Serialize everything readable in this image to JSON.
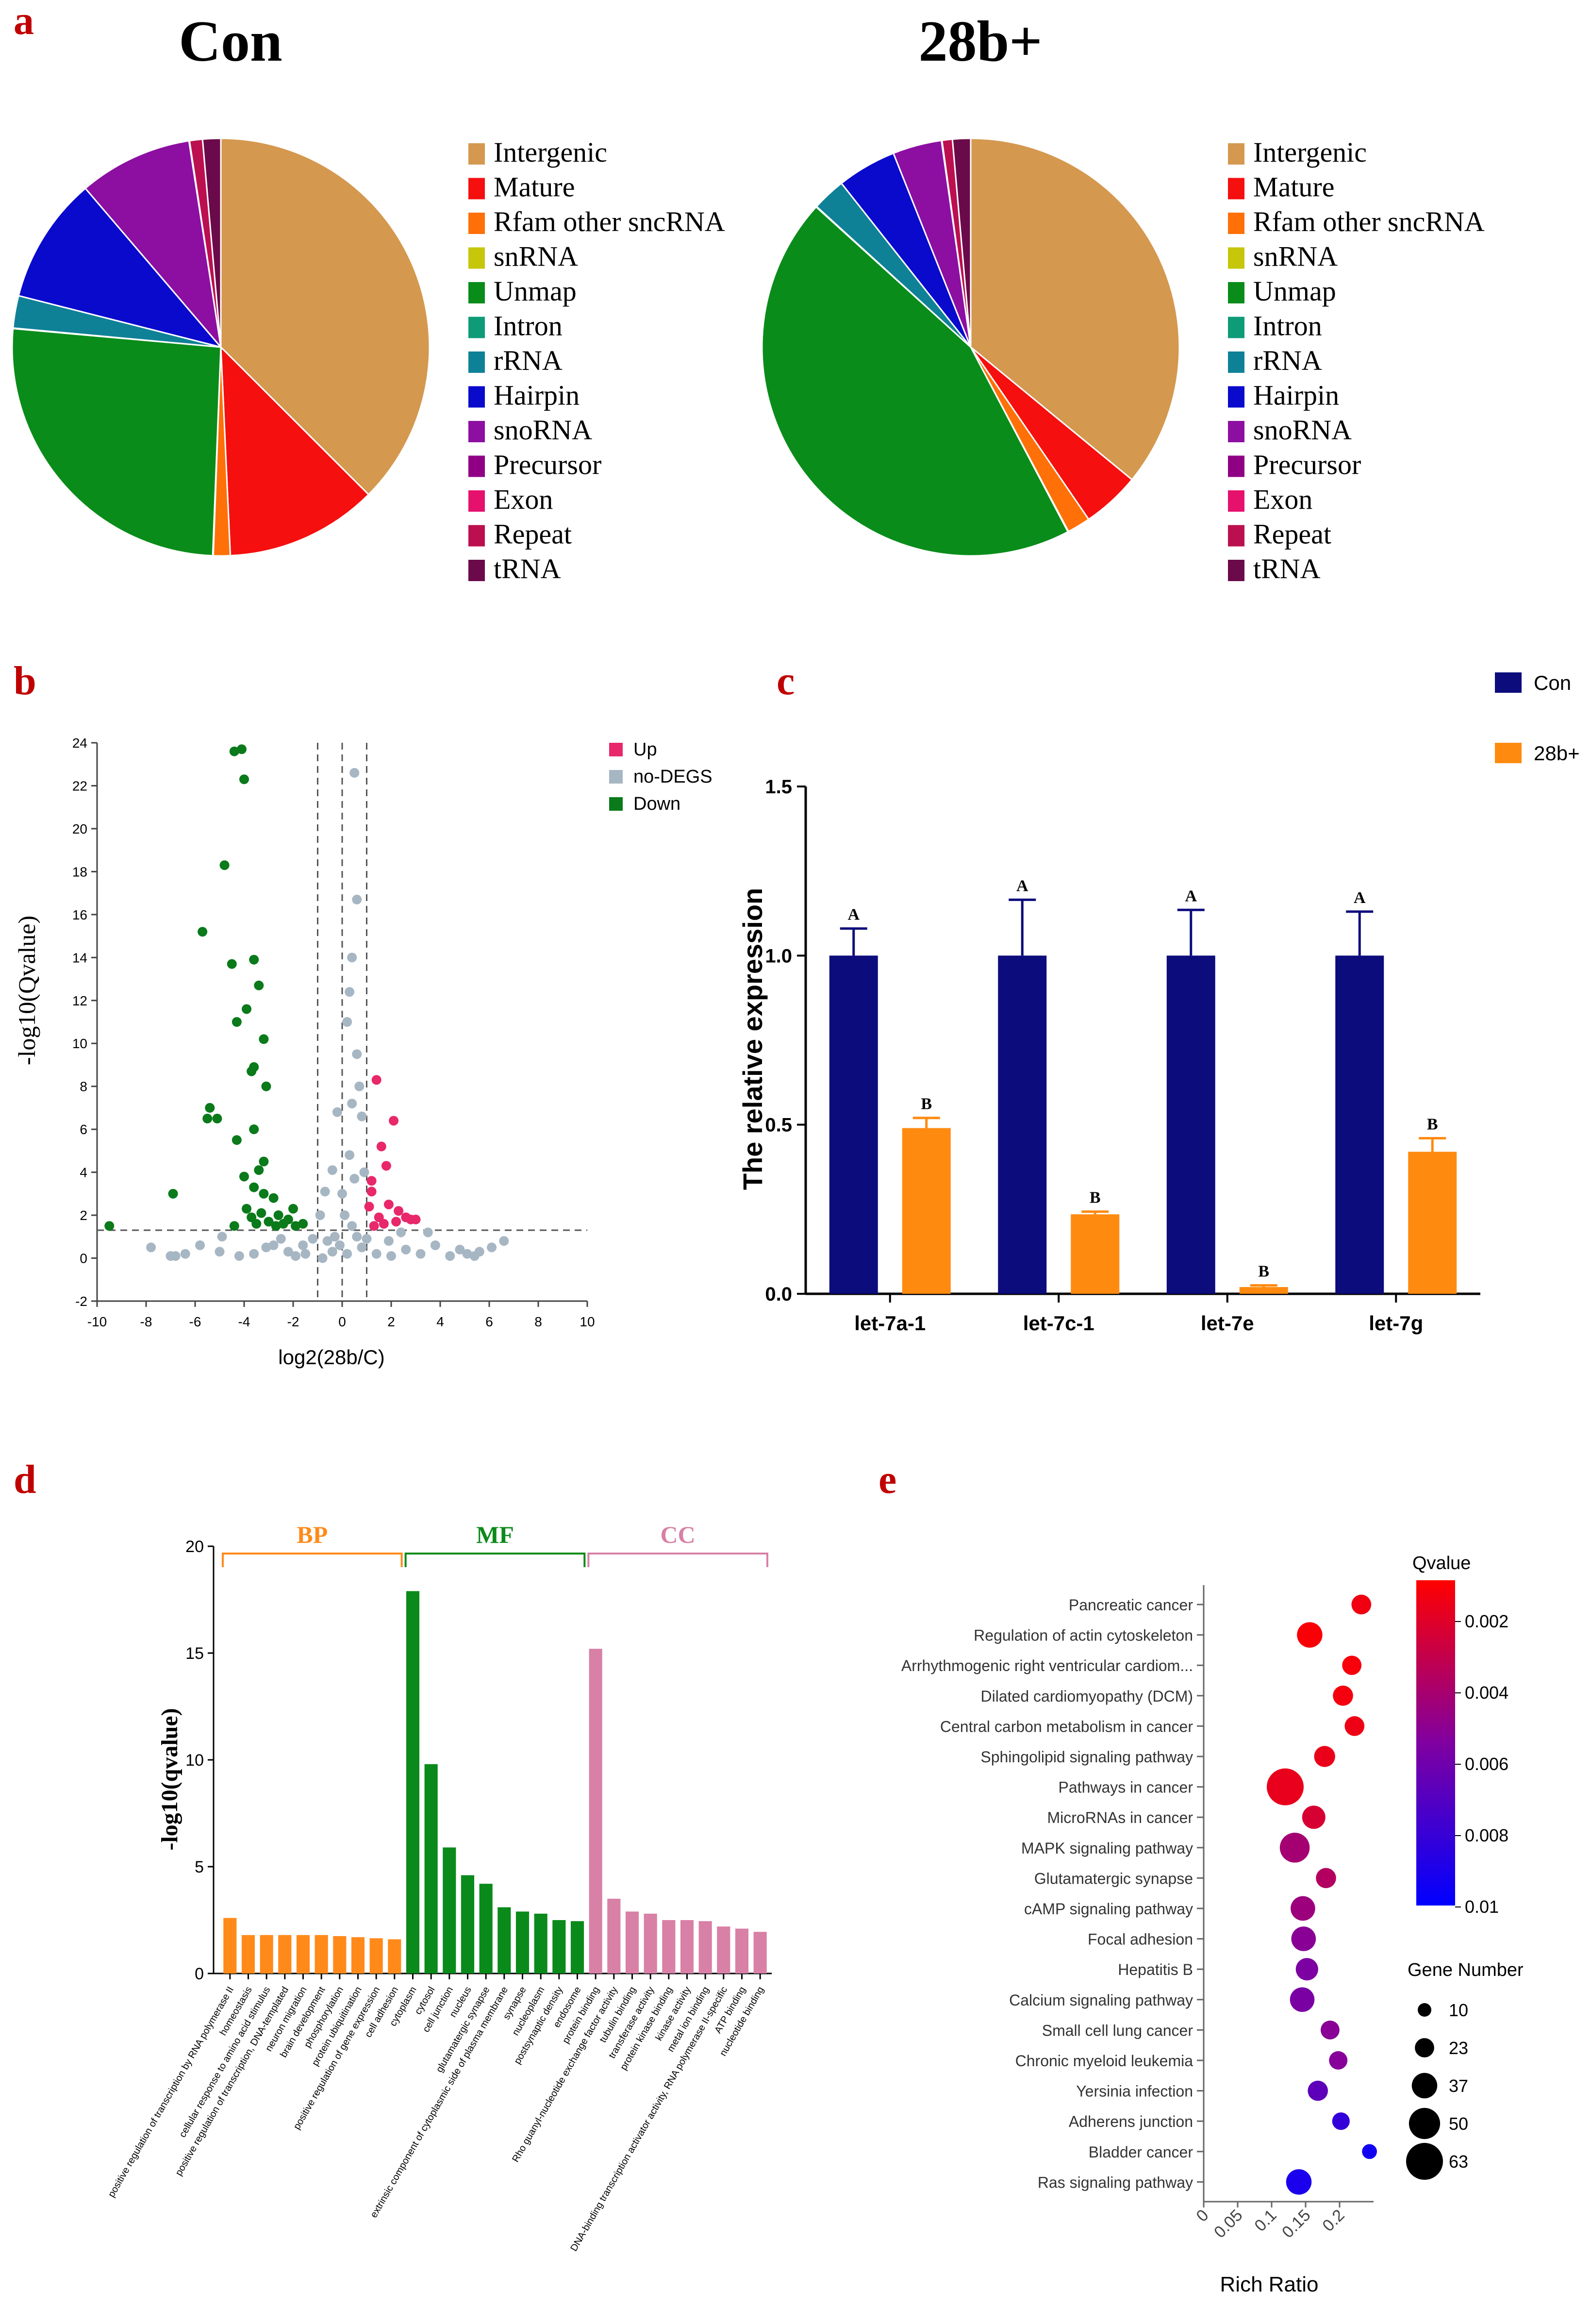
{
  "panels": {
    "a": {
      "letter": "a"
    },
    "b": {
      "letter": "b"
    },
    "c": {
      "letter": "c"
    },
    "d": {
      "letter": "d"
    },
    "e": {
      "letter": "e"
    }
  },
  "colors": {
    "intergenic": "#D4984F",
    "mature": "#F50F0F",
    "rfam": "#FF7008",
    "snrna": "#C6C60A",
    "unmap": "#0A8C1A",
    "intron": "#0E9B78",
    "rrna": "#0F8197",
    "hairpin": "#0A0ACD",
    "snorna": "#8C0FA2",
    "precursor": "#8F0085",
    "exon": "#E6116C",
    "repeat": "#BC0F50",
    "trna": "#6B0A4A",
    "up": "#E8286B",
    "nodegs": "#A7B6C3",
    "down": "#0A7A1A",
    "con_bar": "#0C0C7C",
    "b28_bar": "#FF8A10",
    "bp": "#FF8A1A",
    "mf": "#0A8A1A",
    "cc": "#D880A6"
  },
  "chart_data": [
    {
      "type": "pie",
      "id": "pie_con",
      "title": "Con",
      "labels": [
        "Intergenic",
        "Mature",
        "Rfam other sncRNA",
        "snRNA",
        "Unmap",
        "Intron",
        "rRNA",
        "Hairpin",
        "snoRNA",
        "Precursor",
        "Exon",
        "Repeat",
        "tRNA"
      ],
      "values": [
        37.5,
        11.8,
        1.3,
        0.05,
        25.8,
        0.05,
        2.5,
        9.8,
        8.8,
        0.0,
        0.05,
        1.0,
        1.4
      ],
      "legend_position": "right"
    },
    {
      "type": "pie",
      "id": "pie_28b",
      "title": "28b+",
      "labels": [
        "Intergenic",
        "Mature",
        "Rfam other sncRNA",
        "snRNA",
        "Unmap",
        "Intron",
        "rRNA",
        "Hairpin",
        "snoRNA",
        "Precursor",
        "Exon",
        "Repeat",
        "tRNA"
      ],
      "values": [
        36.0,
        4.5,
        1.8,
        0.05,
        44.5,
        0.05,
        2.6,
        4.6,
        3.8,
        0.0,
        0.05,
        0.8,
        1.4
      ],
      "legend_position": "right"
    },
    {
      "type": "scatter",
      "id": "volcano",
      "xlabel": "log2(28b/C)",
      "ylabel": "-log10(Qvalue)",
      "xlim": [
        -10,
        10
      ],
      "ylim": [
        -2,
        24
      ],
      "xticks": [
        "-10",
        "-8",
        "-6",
        "-4",
        "-2",
        "0",
        "2",
        "4",
        "6",
        "8",
        "10"
      ],
      "yticks": [
        "-2",
        "0",
        "2",
        "4",
        "6",
        "8",
        "10",
        "12",
        "14",
        "16",
        "18",
        "20",
        "22",
        "24"
      ],
      "thresholds": {
        "x": [
          -1,
          0,
          1
        ],
        "y": 1.3
      },
      "legend": [
        "Up",
        "no-DEGS",
        "Down"
      ],
      "series": [
        {
          "name": "Up",
          "points": [
            [
              1.4,
              8.3
            ],
            [
              2.1,
              6.4
            ],
            [
              1.6,
              5.2
            ],
            [
              1.8,
              4.3
            ],
            [
              1.2,
              3.1
            ],
            [
              1.9,
              2.5
            ],
            [
              2.3,
              2.2
            ],
            [
              2.6,
              1.9
            ],
            [
              3.0,
              1.8
            ],
            [
              1.5,
              1.9
            ],
            [
              1.3,
              1.5
            ],
            [
              1.7,
              1.6
            ],
            [
              2.2,
              1.7
            ],
            [
              2.8,
              1.8
            ],
            [
              1.1,
              2.4
            ],
            [
              1.2,
              3.6
            ]
          ]
        },
        {
          "name": "no-DEGS",
          "points": [
            [
              0.5,
              22.6
            ],
            [
              0.6,
              16.7
            ],
            [
              0.4,
              14.0
            ],
            [
              0.3,
              12.4
            ],
            [
              0.2,
              11.0
            ],
            [
              0.6,
              9.5
            ],
            [
              0.7,
              8.0
            ],
            [
              0.4,
              7.2
            ],
            [
              0.8,
              6.6
            ],
            [
              -0.2,
              6.8
            ],
            [
              -0.4,
              4.1
            ],
            [
              0.3,
              4.8
            ],
            [
              0.5,
              3.7
            ],
            [
              0.9,
              4.0
            ],
            [
              0.0,
              3.0
            ],
            [
              -0.7,
              3.1
            ],
            [
              -0.9,
              2.0
            ],
            [
              0.1,
              2.0
            ],
            [
              0.4,
              1.5
            ],
            [
              -0.3,
              1.0
            ],
            [
              -0.6,
              0.8
            ],
            [
              -1.5,
              0.2
            ],
            [
              -2.2,
              0.3
            ],
            [
              -3.1,
              0.5
            ],
            [
              -4.2,
              0.1
            ],
            [
              -5.0,
              0.3
            ],
            [
              -5.8,
              0.6
            ],
            [
              -6.4,
              0.2
            ],
            [
              -7.0,
              0.1
            ],
            [
              -7.8,
              0.5
            ],
            [
              -2.8,
              0.6
            ],
            [
              -1.9,
              0.1
            ],
            [
              -0.8,
              0.0
            ],
            [
              -0.4,
              0.3
            ],
            [
              0.2,
              0.2
            ],
            [
              0.8,
              0.5
            ],
            [
              1.4,
              0.2
            ],
            [
              1.9,
              0.8
            ],
            [
              2.6,
              0.4
            ],
            [
              3.2,
              0.2
            ],
            [
              3.8,
              0.6
            ],
            [
              4.4,
              0.1
            ],
            [
              5.1,
              0.2
            ],
            [
              5.6,
              0.3
            ],
            [
              6.1,
              0.5
            ],
            [
              6.6,
              0.8
            ],
            [
              3.5,
              1.2
            ],
            [
              2.4,
              1.2
            ],
            [
              -1.2,
              0.9
            ],
            [
              -0.1,
              0.6
            ],
            [
              0.6,
              1.0
            ],
            [
              -1.6,
              0.6
            ],
            [
              1.0,
              0.9
            ],
            [
              -2.5,
              0.9
            ],
            [
              4.8,
              0.4
            ],
            [
              5.4,
              0.1
            ],
            [
              -4.9,
              1.0
            ],
            [
              -6.8,
              0.1
            ],
            [
              -3.6,
              0.2
            ],
            [
              2.0,
              0.1
            ]
          ]
        },
        {
          "name": "Down",
          "points": [
            [
              -4.4,
              23.6
            ],
            [
              -4.1,
              23.7
            ],
            [
              -4.0,
              22.3
            ],
            [
              -4.8,
              18.3
            ],
            [
              -5.7,
              15.2
            ],
            [
              -3.6,
              13.9
            ],
            [
              -4.5,
              13.7
            ],
            [
              -3.4,
              12.7
            ],
            [
              -3.9,
              11.6
            ],
            [
              -4.3,
              11.0
            ],
            [
              -3.2,
              10.2
            ],
            [
              -3.6,
              8.9
            ],
            [
              -3.7,
              8.7
            ],
            [
              -3.1,
              8.0
            ],
            [
              -5.4,
              7.0
            ],
            [
              -5.5,
              6.5
            ],
            [
              -5.1,
              6.5
            ],
            [
              -3.6,
              6.0
            ],
            [
              -4.3,
              5.5
            ],
            [
              -3.2,
              4.5
            ],
            [
              -3.4,
              4.1
            ],
            [
              -4.0,
              3.8
            ],
            [
              -3.6,
              3.3
            ],
            [
              -3.2,
              3.0
            ],
            [
              -2.8,
              2.8
            ],
            [
              -3.9,
              2.3
            ],
            [
              -3.3,
              2.1
            ],
            [
              -2.6,
              2.0
            ],
            [
              -3.7,
              1.9
            ],
            [
              -2.2,
              1.8
            ],
            [
              -3.0,
              1.7
            ],
            [
              -2.4,
              1.6
            ],
            [
              -1.6,
              1.6
            ],
            [
              -1.9,
              1.5
            ],
            [
              -2.7,
              1.5
            ],
            [
              -4.4,
              1.5
            ],
            [
              -6.9,
              3.0
            ],
            [
              -9.5,
              1.5
            ],
            [
              -3.5,
              1.6
            ],
            [
              -2.0,
              2.3
            ]
          ]
        }
      ]
    },
    {
      "type": "bar",
      "id": "qpcr",
      "ylabel": "The relative expression",
      "categories": [
        "let-7a-1",
        "let-7c-1",
        "let-7e",
        "let-7g"
      ],
      "ylim": [
        0,
        1.5
      ],
      "yticks": [
        "0.0",
        "0.5",
        "1.0",
        "1.5"
      ],
      "legend": [
        "Con",
        "28b+"
      ],
      "series": [
        {
          "name": "Con",
          "values": [
            1.0,
            1.0,
            1.0,
            1.0
          ],
          "errors": [
            0.08,
            0.165,
            0.135,
            0.13
          ],
          "letters": [
            "A",
            "A",
            "A",
            "A"
          ]
        },
        {
          "name": "28b+",
          "values": [
            0.49,
            0.235,
            0.02,
            0.42
          ],
          "errors": [
            0.03,
            0.008,
            0.005,
            0.04
          ],
          "letters": [
            "B",
            "B",
            "B",
            "B"
          ]
        }
      ]
    },
    {
      "type": "bar",
      "id": "go",
      "ylabel": "-log10(qvalue)",
      "ylim": [
        0,
        20
      ],
      "yticks": [
        "0",
        "5",
        "10",
        "15",
        "20"
      ],
      "groups": [
        "BP",
        "MF",
        "CC"
      ],
      "categories": [
        "positive regulation of transcription by RNA polymerase II",
        "homeostasis",
        "cellular response to amino acid stimulus",
        "positive regulation of transcription, DNA-templated",
        "neuron migration",
        "brain development",
        "phosphorylation",
        "protein ubiquitination",
        "positive regulation of gene expression",
        "cell adhesion",
        "cytoplasm",
        "cytosol",
        "cell junction",
        "nucleus",
        "glutamatergic synapse",
        "extrinsic component of cytoplasmic side of plasma membrane",
        "synapse",
        "nucleoplasm",
        "postsynaptic density",
        "endosome",
        "protein binding",
        "Rho guanyl-nucleotide exchange factor activity",
        "tubulin binding",
        "transferase activity",
        "protein kinase binding",
        "kinase activity",
        "metal ion binding",
        "DNA-binding transcription activator activity, RNA polymerase II-specific",
        "ATP binding",
        "nucleotide binding"
      ],
      "group_of": [
        "BP",
        "BP",
        "BP",
        "BP",
        "BP",
        "BP",
        "BP",
        "BP",
        "BP",
        "BP",
        "MF",
        "MF",
        "MF",
        "MF",
        "MF",
        "MF",
        "MF",
        "MF",
        "MF",
        "MF",
        "CC",
        "CC",
        "CC",
        "CC",
        "CC",
        "CC",
        "CC",
        "CC",
        "CC",
        "CC"
      ],
      "values": [
        2.6,
        1.8,
        1.8,
        1.8,
        1.8,
        1.8,
        1.75,
        1.7,
        1.65,
        1.6,
        17.9,
        9.8,
        5.9,
        4.6,
        4.2,
        3.1,
        2.9,
        2.8,
        2.5,
        2.45,
        15.2,
        3.5,
        2.9,
        2.8,
        2.5,
        2.5,
        2.45,
        2.2,
        2.1,
        1.95
      ]
    },
    {
      "type": "scatter",
      "id": "kegg",
      "xlabel": "Rich Ratio",
      "xticks": [
        "0",
        "0.05",
        "0.1",
        "0.15",
        "0.2"
      ],
      "xlim": [
        0,
        0.25
      ],
      "colorbar_title": "Qvalue",
      "colorbar_ticks": [
        "0.002",
        "0.004",
        "0.006",
        "0.008",
        "0.01"
      ],
      "size_title": "Gene Number",
      "size_ticks": [
        "10",
        "23",
        "37",
        "50",
        "63"
      ],
      "pathways": [
        {
          "name": "Pancreatic cancer",
          "rich_ratio": 0.232,
          "qvalue": 0.0015,
          "genes": 24
        },
        {
          "name": "Regulation of actin cytoskeleton",
          "rich_ratio": 0.156,
          "qvalue": 0.0012,
          "genes": 37
        },
        {
          "name": "Arrhythmogenic right ventricular cardiom...",
          "rich_ratio": 0.218,
          "qvalue": 0.0013,
          "genes": 23
        },
        {
          "name": "Dilated cardiomyopathy (DCM)",
          "rich_ratio": 0.205,
          "qvalue": 0.0014,
          "genes": 25
        },
        {
          "name": "Central carbon metabolism in cancer",
          "rich_ratio": 0.222,
          "qvalue": 0.0016,
          "genes": 24
        },
        {
          "name": "Sphingolipid signaling pathway",
          "rich_ratio": 0.178,
          "qvalue": 0.0017,
          "genes": 27
        },
        {
          "name": "Pathways in cancer",
          "rich_ratio": 0.12,
          "qvalue": 0.0018,
          "genes": 63
        },
        {
          "name": "MicroRNAs in cancer",
          "rich_ratio": 0.162,
          "qvalue": 0.0024,
          "genes": 32
        },
        {
          "name": "MAPK signaling pathway",
          "rich_ratio": 0.134,
          "qvalue": 0.0042,
          "genes": 47
        },
        {
          "name": "Glutamatergic synapse",
          "rich_ratio": 0.18,
          "qvalue": 0.0037,
          "genes": 25
        },
        {
          "name": "cAMP signaling pathway",
          "rich_ratio": 0.146,
          "qvalue": 0.0045,
          "genes": 35
        },
        {
          "name": "Focal adhesion",
          "rich_ratio": 0.147,
          "qvalue": 0.0052,
          "genes": 35
        },
        {
          "name": "Hepatitis B",
          "rich_ratio": 0.152,
          "qvalue": 0.0056,
          "genes": 30
        },
        {
          "name": "Calcium signaling pathway",
          "rich_ratio": 0.145,
          "qvalue": 0.0057,
          "genes": 35
        },
        {
          "name": "Small cell lung cancer",
          "rich_ratio": 0.186,
          "qvalue": 0.0052,
          "genes": 22
        },
        {
          "name": "Chronic myeloid leukemia",
          "rich_ratio": 0.198,
          "qvalue": 0.0053,
          "genes": 21
        },
        {
          "name": "Yersinia infection",
          "rich_ratio": 0.168,
          "qvalue": 0.0067,
          "genes": 25
        },
        {
          "name": "Adherens junction",
          "rich_ratio": 0.202,
          "qvalue": 0.0082,
          "genes": 19
        },
        {
          "name": "Bladder cancer",
          "rich_ratio": 0.244,
          "qvalue": 0.0094,
          "genes": 13
        },
        {
          "name": "Ras signaling pathway",
          "rich_ratio": 0.14,
          "qvalue": 0.0091,
          "genes": 37
        }
      ]
    }
  ]
}
